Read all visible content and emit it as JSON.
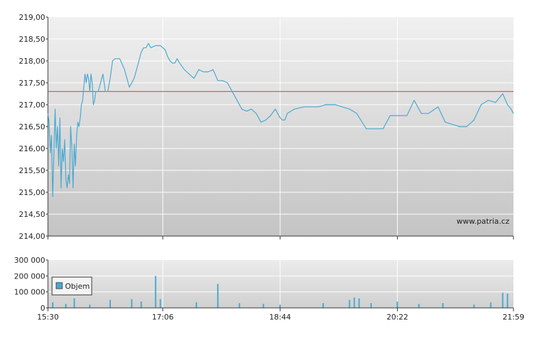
{
  "chart_data": [
    {
      "type": "line",
      "panel": "price",
      "xlim": [
        "15:30",
        "21:59"
      ],
      "ylim": [
        214.0,
        219.0
      ],
      "y_ticks": [
        "219,00",
        "218,50",
        "218,00",
        "217,50",
        "217,00",
        "216,50",
        "216,00",
        "215,50",
        "215,00",
        "214,50",
        "214,00"
      ],
      "x_ticks": [
        "15:30",
        "17:06",
        "18:44",
        "20:22",
        "21:59"
      ],
      "reference_line": 217.3,
      "watermark": "www.patria.cz",
      "grid": true,
      "series": [
        {
          "color": "#4aa8d0",
          "x": [
            "15:30",
            "15:31",
            "15:32",
            "15:33",
            "15:34",
            "15:36",
            "15:37",
            "15:38",
            "15:39",
            "15:40",
            "15:41",
            "15:42",
            "15:43",
            "15:44",
            "15:45",
            "15:46",
            "15:47",
            "15:48",
            "15:49",
            "15:50",
            "15:51",
            "15:52",
            "15:53",
            "15:54",
            "15:55",
            "15:56",
            "15:57",
            "15:58",
            "15:59",
            "16:00",
            "16:01",
            "16:02",
            "16:03",
            "16:04",
            "16:05",
            "16:06",
            "16:07",
            "16:08",
            "16:09",
            "16:10",
            "16:12",
            "16:14",
            "16:16",
            "16:18",
            "16:20",
            "16:22",
            "16:24",
            "16:26",
            "16:30",
            "16:34",
            "16:38",
            "16:42",
            "16:46",
            "16:48",
            "16:50",
            "16:52",
            "16:54",
            "16:56",
            "17:00",
            "17:04",
            "17:08",
            "17:10",
            "17:12",
            "17:14",
            "17:16",
            "17:18",
            "17:20",
            "17:24",
            "17:28",
            "17:32",
            "17:36",
            "17:40",
            "17:44",
            "17:48",
            "17:52",
            "17:56",
            "18:00",
            "18:04",
            "18:08",
            "18:12",
            "18:16",
            "18:20",
            "18:24",
            "18:28",
            "18:32",
            "18:36",
            "18:40",
            "18:44",
            "18:46",
            "18:48",
            "18:50",
            "18:56",
            "19:04",
            "19:10",
            "19:16",
            "19:22",
            "19:30",
            "19:36",
            "19:42",
            "19:48",
            "19:56",
            "20:04",
            "20:10",
            "20:16",
            "20:22",
            "20:30",
            "20:36",
            "20:42",
            "20:48",
            "20:56",
            "21:02",
            "21:08",
            "21:14",
            "21:20",
            "21:26",
            "21:32",
            "21:38",
            "21:44",
            "21:50",
            "21:54",
            "21:57",
            "21:59"
          ],
          "y": [
            216.8,
            216.6,
            215.9,
            216.3,
            214.9,
            216.9,
            216.0,
            216.5,
            215.6,
            216.7,
            215.1,
            216.0,
            215.7,
            216.2,
            215.3,
            215.1,
            215.4,
            215.2,
            216.5,
            216.0,
            215.1,
            216.1,
            215.6,
            216.3,
            216.6,
            216.5,
            216.7,
            217.0,
            217.1,
            217.4,
            217.7,
            217.5,
            217.7,
            217.6,
            217.3,
            217.7,
            217.5,
            217.0,
            217.1,
            217.3,
            217.3,
            217.5,
            217.7,
            217.3,
            217.3,
            217.6,
            218.0,
            218.05,
            218.05,
            217.8,
            217.4,
            217.6,
            218.0,
            218.2,
            218.3,
            218.3,
            218.4,
            218.3,
            218.35,
            218.35,
            218.25,
            218.1,
            218.0,
            217.95,
            217.95,
            218.05,
            217.95,
            217.8,
            217.7,
            217.6,
            217.8,
            217.75,
            217.75,
            217.8,
            217.55,
            217.55,
            217.5,
            217.3,
            217.1,
            216.9,
            216.85,
            216.9,
            216.8,
            216.6,
            216.65,
            216.75,
            216.9,
            216.7,
            216.65,
            216.65,
            216.8,
            216.9,
            216.95,
            216.95,
            216.95,
            217.0,
            217.0,
            216.95,
            216.9,
            216.8,
            216.45,
            216.45,
            216.45,
            216.75,
            216.75,
            216.75,
            217.1,
            216.8,
            216.8,
            216.95,
            216.6,
            216.55,
            216.5,
            216.5,
            216.65,
            217.0,
            217.1,
            217.05,
            217.25,
            217.0,
            216.9,
            216.8
          ]
        }
      ]
    },
    {
      "type": "bar",
      "panel": "volume",
      "xlim": [
        "15:30",
        "21:59"
      ],
      "ylim": [
        0,
        300000
      ],
      "y_ticks": [
        "300 000",
        "200 000",
        "100 000",
        "0"
      ],
      "x_ticks": [
        "15:30",
        "17:06",
        "18:44",
        "20:22",
        "21:59"
      ],
      "legend": {
        "position": "top-left",
        "label": "Objem",
        "color": "#4aa8d0"
      },
      "series": [
        {
          "name": "Objem",
          "color": "#4aa8d0",
          "x": [
            "15:34",
            "15:45",
            "15:52",
            "16:05",
            "16:22",
            "16:40",
            "16:48",
            "17:00",
            "17:04",
            "17:34",
            "17:52",
            "18:10",
            "18:30",
            "18:44",
            "19:20",
            "19:42",
            "19:46",
            "19:50",
            "20:00",
            "20:22",
            "20:40",
            "21:00",
            "21:26",
            "21:40",
            "21:50",
            "21:54"
          ],
          "y": [
            35000,
            25000,
            60000,
            20000,
            50000,
            55000,
            40000,
            200000,
            55000,
            35000,
            150000,
            30000,
            25000,
            20000,
            30000,
            50000,
            65000,
            60000,
            30000,
            40000,
            25000,
            30000,
            20000,
            35000,
            95000,
            90000
          ]
        }
      ]
    }
  ]
}
